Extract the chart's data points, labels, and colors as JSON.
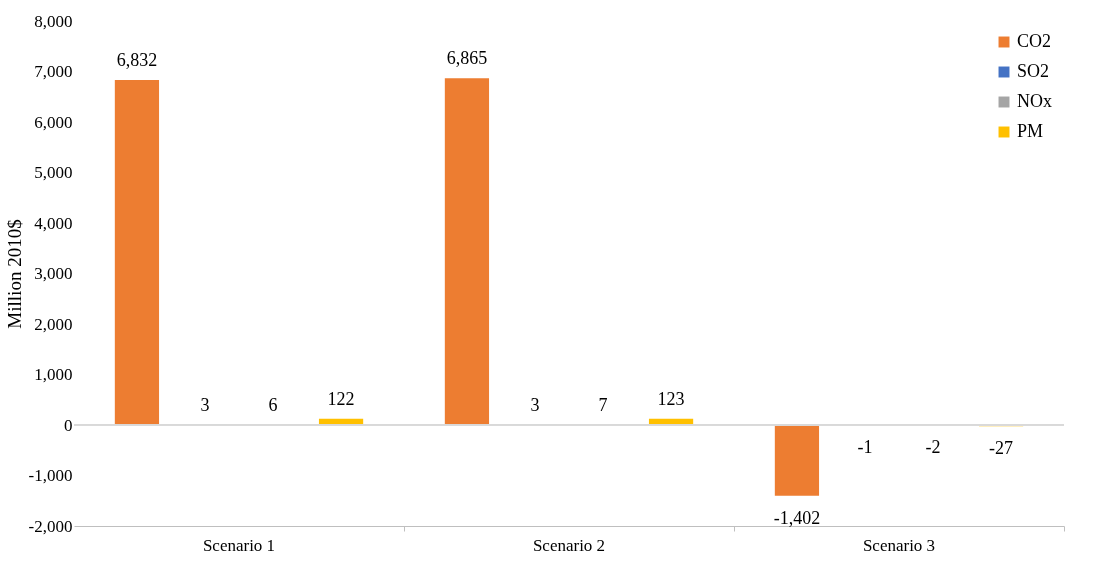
{
  "chart_data": {
    "type": "bar",
    "ylabel": "Million 2010$",
    "categories": [
      "Scenario 1",
      "Scenario 2",
      "Scenario 3"
    ],
    "series": [
      {
        "name": "CO2",
        "color": "#ed7d31",
        "values": [
          6832,
          6865,
          -1402
        ],
        "value_labels": [
          "6,832",
          "6,865",
          "-1,402"
        ]
      },
      {
        "name": "SO2",
        "color": "#4472c4",
        "values": [
          3,
          3,
          -1
        ],
        "value_labels": [
          "3",
          "3",
          "-1"
        ]
      },
      {
        "name": "NOx",
        "color": "#a5a5a5",
        "values": [
          6,
          7,
          -2
        ],
        "value_labels": [
          "6",
          "7",
          "-2"
        ]
      },
      {
        "name": "PM",
        "color": "#ffc000",
        "values": [
          122,
          123,
          -27
        ],
        "value_labels": [
          "122",
          "123",
          "-27"
        ]
      }
    ],
    "ylim": [
      -2000,
      8000
    ],
    "yticks": [
      {
        "value": -2000,
        "label": "-2,000"
      },
      {
        "value": -1000,
        "label": "-1,000"
      },
      0,
      {
        "value": 1000,
        "label": "1,000"
      },
      {
        "value": 2000,
        "label": "2,000"
      },
      {
        "value": 3000,
        "label": "3,000"
      },
      {
        "value": 4000,
        "label": "4,000"
      },
      {
        "value": 5000,
        "label": "5,000"
      },
      {
        "value": 6000,
        "label": "6,000"
      },
      {
        "value": 7000,
        "label": "7,000"
      },
      {
        "value": 8000,
        "label": "8,000"
      }
    ],
    "legend": "top right"
  }
}
